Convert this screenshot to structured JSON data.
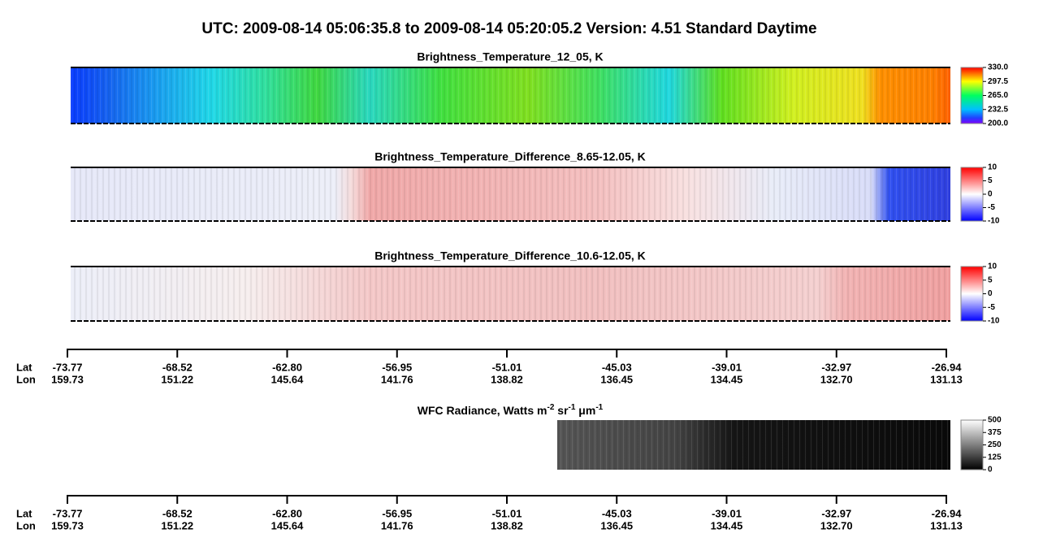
{
  "title": "UTC:  2009-08-14   05:06:35.8  to  2009-08-14   05:20:05.2    Version: 4.51  Standard Daytime",
  "panels": [
    {
      "title": "Brightness_Temperature_12_05, K",
      "colorbar_ticks": [
        "330.0",
        "297.5",
        "265.0",
        "232.5",
        "200.0"
      ]
    },
    {
      "title": "Brightness_Temperature_Difference_8.65-12.05, K",
      "colorbar_ticks": [
        "10",
        "5",
        "0",
        "-5",
        "-10"
      ]
    },
    {
      "title": "Brightness_Temperature_Difference_10.6-12.05, K",
      "colorbar_ticks": [
        "10",
        "5",
        "0",
        "-5",
        "-10"
      ]
    }
  ],
  "wfc": {
    "title_parts": [
      "WFC Radiance, Watts m",
      "-2",
      " sr",
      "-1",
      " μm",
      "-1"
    ],
    "colorbar_ticks": [
      "500",
      "375",
      "250",
      "125",
      "0"
    ]
  },
  "axis": {
    "lat_label": "Lat",
    "lon_label": "Lon",
    "lat": [
      "-73.77",
      "-68.52",
      "-62.80",
      "-56.95",
      "-51.01",
      "-45.03",
      "-39.01",
      "-32.97",
      "-26.94"
    ],
    "lon": [
      "159.73",
      "151.22",
      "145.64",
      "141.76",
      "138.82",
      "136.45",
      "134.45",
      "132.70",
      "131.13"
    ]
  }
}
